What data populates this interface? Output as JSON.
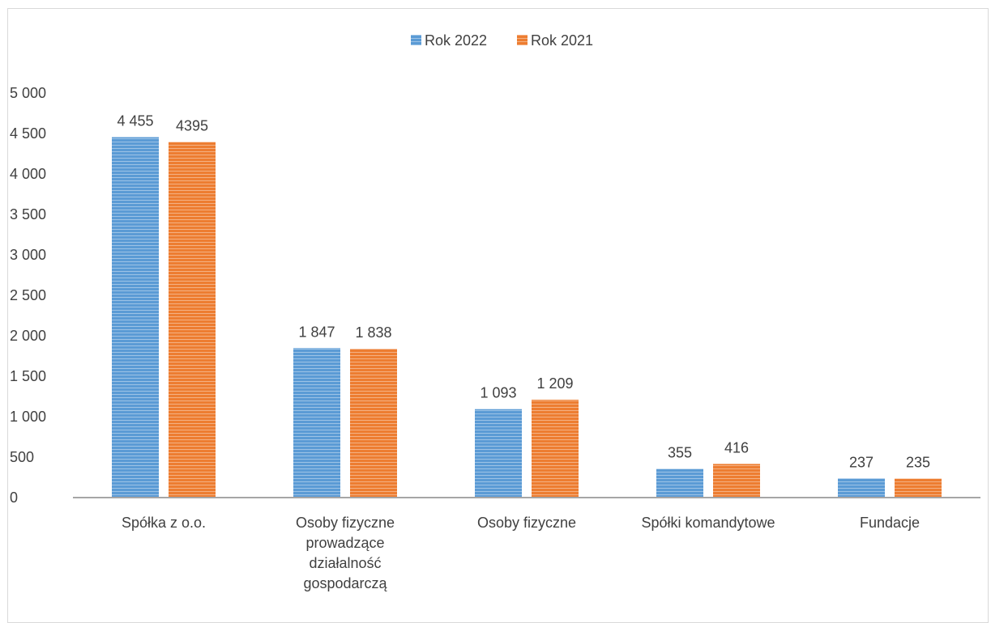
{
  "chart_data": {
    "type": "bar",
    "categories": [
      [
        "Spółka z o.o."
      ],
      [
        "Osoby fizyczne",
        "prowadzące",
        "działalność",
        "gospodarczą"
      ],
      [
        "Osoby fizyczne"
      ],
      [
        "Spółki komandytowe"
      ],
      [
        "Fundacje"
      ]
    ],
    "series": [
      {
        "name": "Rok 2022",
        "color": "#5b9bd5",
        "values": [
          4455,
          1847,
          1093,
          355,
          237
        ],
        "labels": [
          "4 455",
          "1 847",
          "1 093",
          "355",
          "237"
        ]
      },
      {
        "name": "Rok 2021",
        "color": "#ed7d31",
        "values": [
          4395,
          1838,
          1209,
          416,
          235
        ],
        "labels": [
          "4395",
          "1 838",
          "1 209",
          "416",
          "235"
        ]
      }
    ],
    "ylim": [
      0,
      5000
    ],
    "yticks": [
      0,
      500,
      1000,
      1500,
      2000,
      2500,
      3000,
      3500,
      4000,
      4500,
      5000
    ],
    "ytick_labels": [
      "0",
      "500",
      "1 000",
      "1 500",
      "2 000",
      "2 500",
      "3 000",
      "3 500",
      "4 000",
      "4 500",
      "5 000"
    ],
    "legend_position": "top-center",
    "grid": false,
    "title": "",
    "xlabel": "",
    "ylabel": ""
  }
}
